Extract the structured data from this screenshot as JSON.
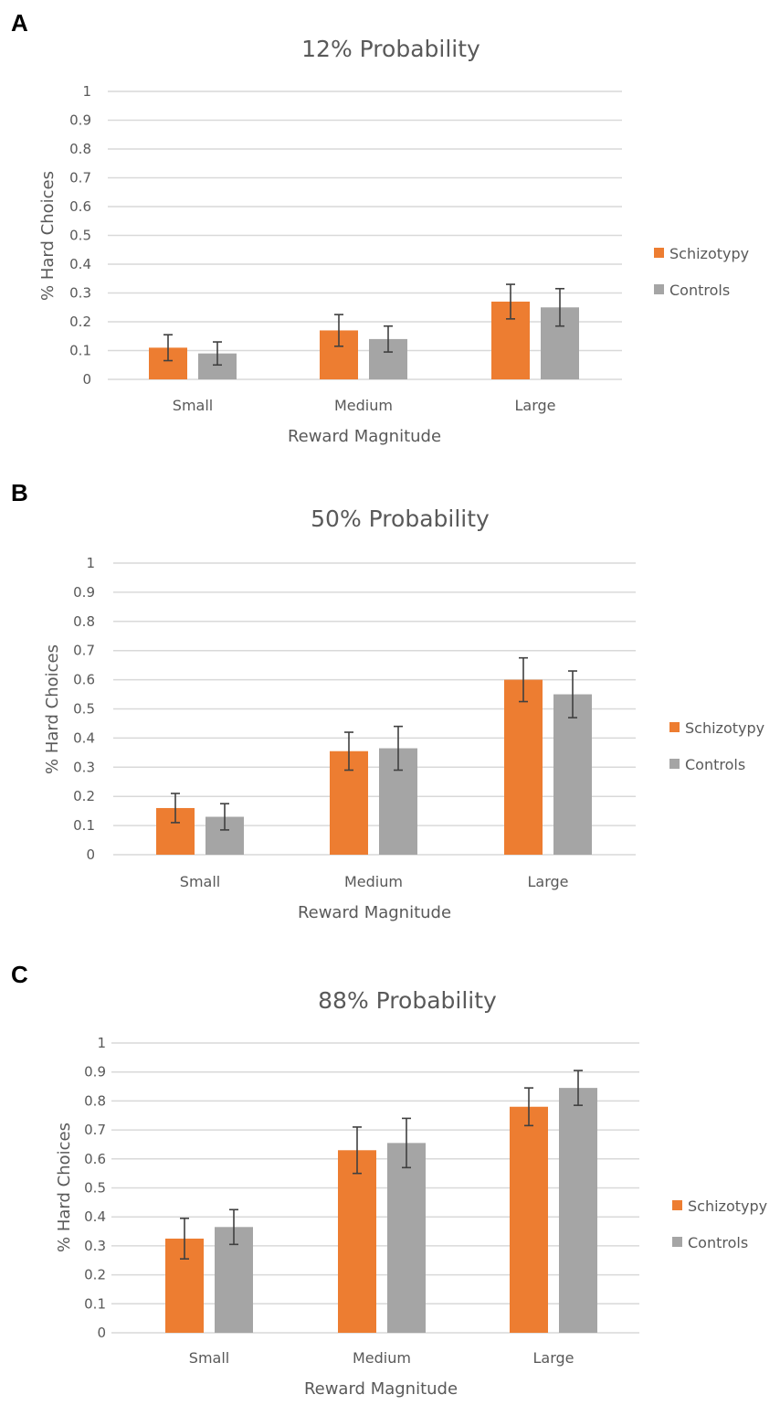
{
  "colors": {
    "schizotypy": "#ED7D31",
    "controls": "#A5A5A5"
  },
  "chart_data": [
    {
      "panel": "A",
      "type": "bar",
      "title": "12% Probability",
      "xlabel": "Reward Magnitude",
      "ylabel": "% Hard Choices",
      "ylim": [
        0,
        1
      ],
      "yticks": [
        "0",
        "0.1",
        "0.2",
        "0.3",
        "0.4",
        "0.5",
        "0.6",
        "0.7",
        "0.8",
        "0.9",
        "1"
      ],
      "categories": [
        "Small",
        "Medium",
        "Large"
      ],
      "legend_position": "right",
      "series": [
        {
          "name": "Schizotypy",
          "values": [
            0.11,
            0.17,
            0.27
          ],
          "errors": [
            0.045,
            0.055,
            0.06
          ]
        },
        {
          "name": "Controls",
          "values": [
            0.09,
            0.14,
            0.25
          ],
          "errors": [
            0.04,
            0.045,
            0.065
          ]
        }
      ]
    },
    {
      "panel": "B",
      "type": "bar",
      "title": "50% Probability",
      "xlabel": "Reward Magnitude",
      "ylabel": "% Hard Choices",
      "ylim": [
        0,
        1
      ],
      "yticks": [
        "0",
        "0.1",
        "0.2",
        "0.3",
        "0.4",
        "0.5",
        "0.6",
        "0.7",
        "0.8",
        "0.9",
        "1"
      ],
      "categories": [
        "Small",
        "Medium",
        "Large"
      ],
      "legend_position": "right",
      "series": [
        {
          "name": "Schizotypy",
          "values": [
            0.16,
            0.355,
            0.6
          ],
          "errors": [
            0.05,
            0.065,
            0.075
          ]
        },
        {
          "name": "Controls",
          "values": [
            0.13,
            0.365,
            0.55
          ],
          "errors": [
            0.045,
            0.075,
            0.08
          ]
        }
      ]
    },
    {
      "panel": "C",
      "type": "bar",
      "title": "88% Probability",
      "xlabel": "Reward Magnitude",
      "ylabel": "% Hard Choices",
      "ylim": [
        0,
        1
      ],
      "yticks": [
        "0",
        "0.1",
        "0.2",
        "0.3",
        "0.4",
        "0.5",
        "0.6",
        "0.7",
        "0.8",
        "0.9",
        "1"
      ],
      "categories": [
        "Small",
        "Medium",
        "Large"
      ],
      "legend_position": "right",
      "series": [
        {
          "name": "Schizotypy",
          "values": [
            0.325,
            0.63,
            0.78
          ],
          "errors": [
            0.07,
            0.08,
            0.065
          ]
        },
        {
          "name": "Controls",
          "values": [
            0.365,
            0.655,
            0.845
          ],
          "errors": [
            0.06,
            0.085,
            0.06
          ]
        }
      ]
    }
  ]
}
